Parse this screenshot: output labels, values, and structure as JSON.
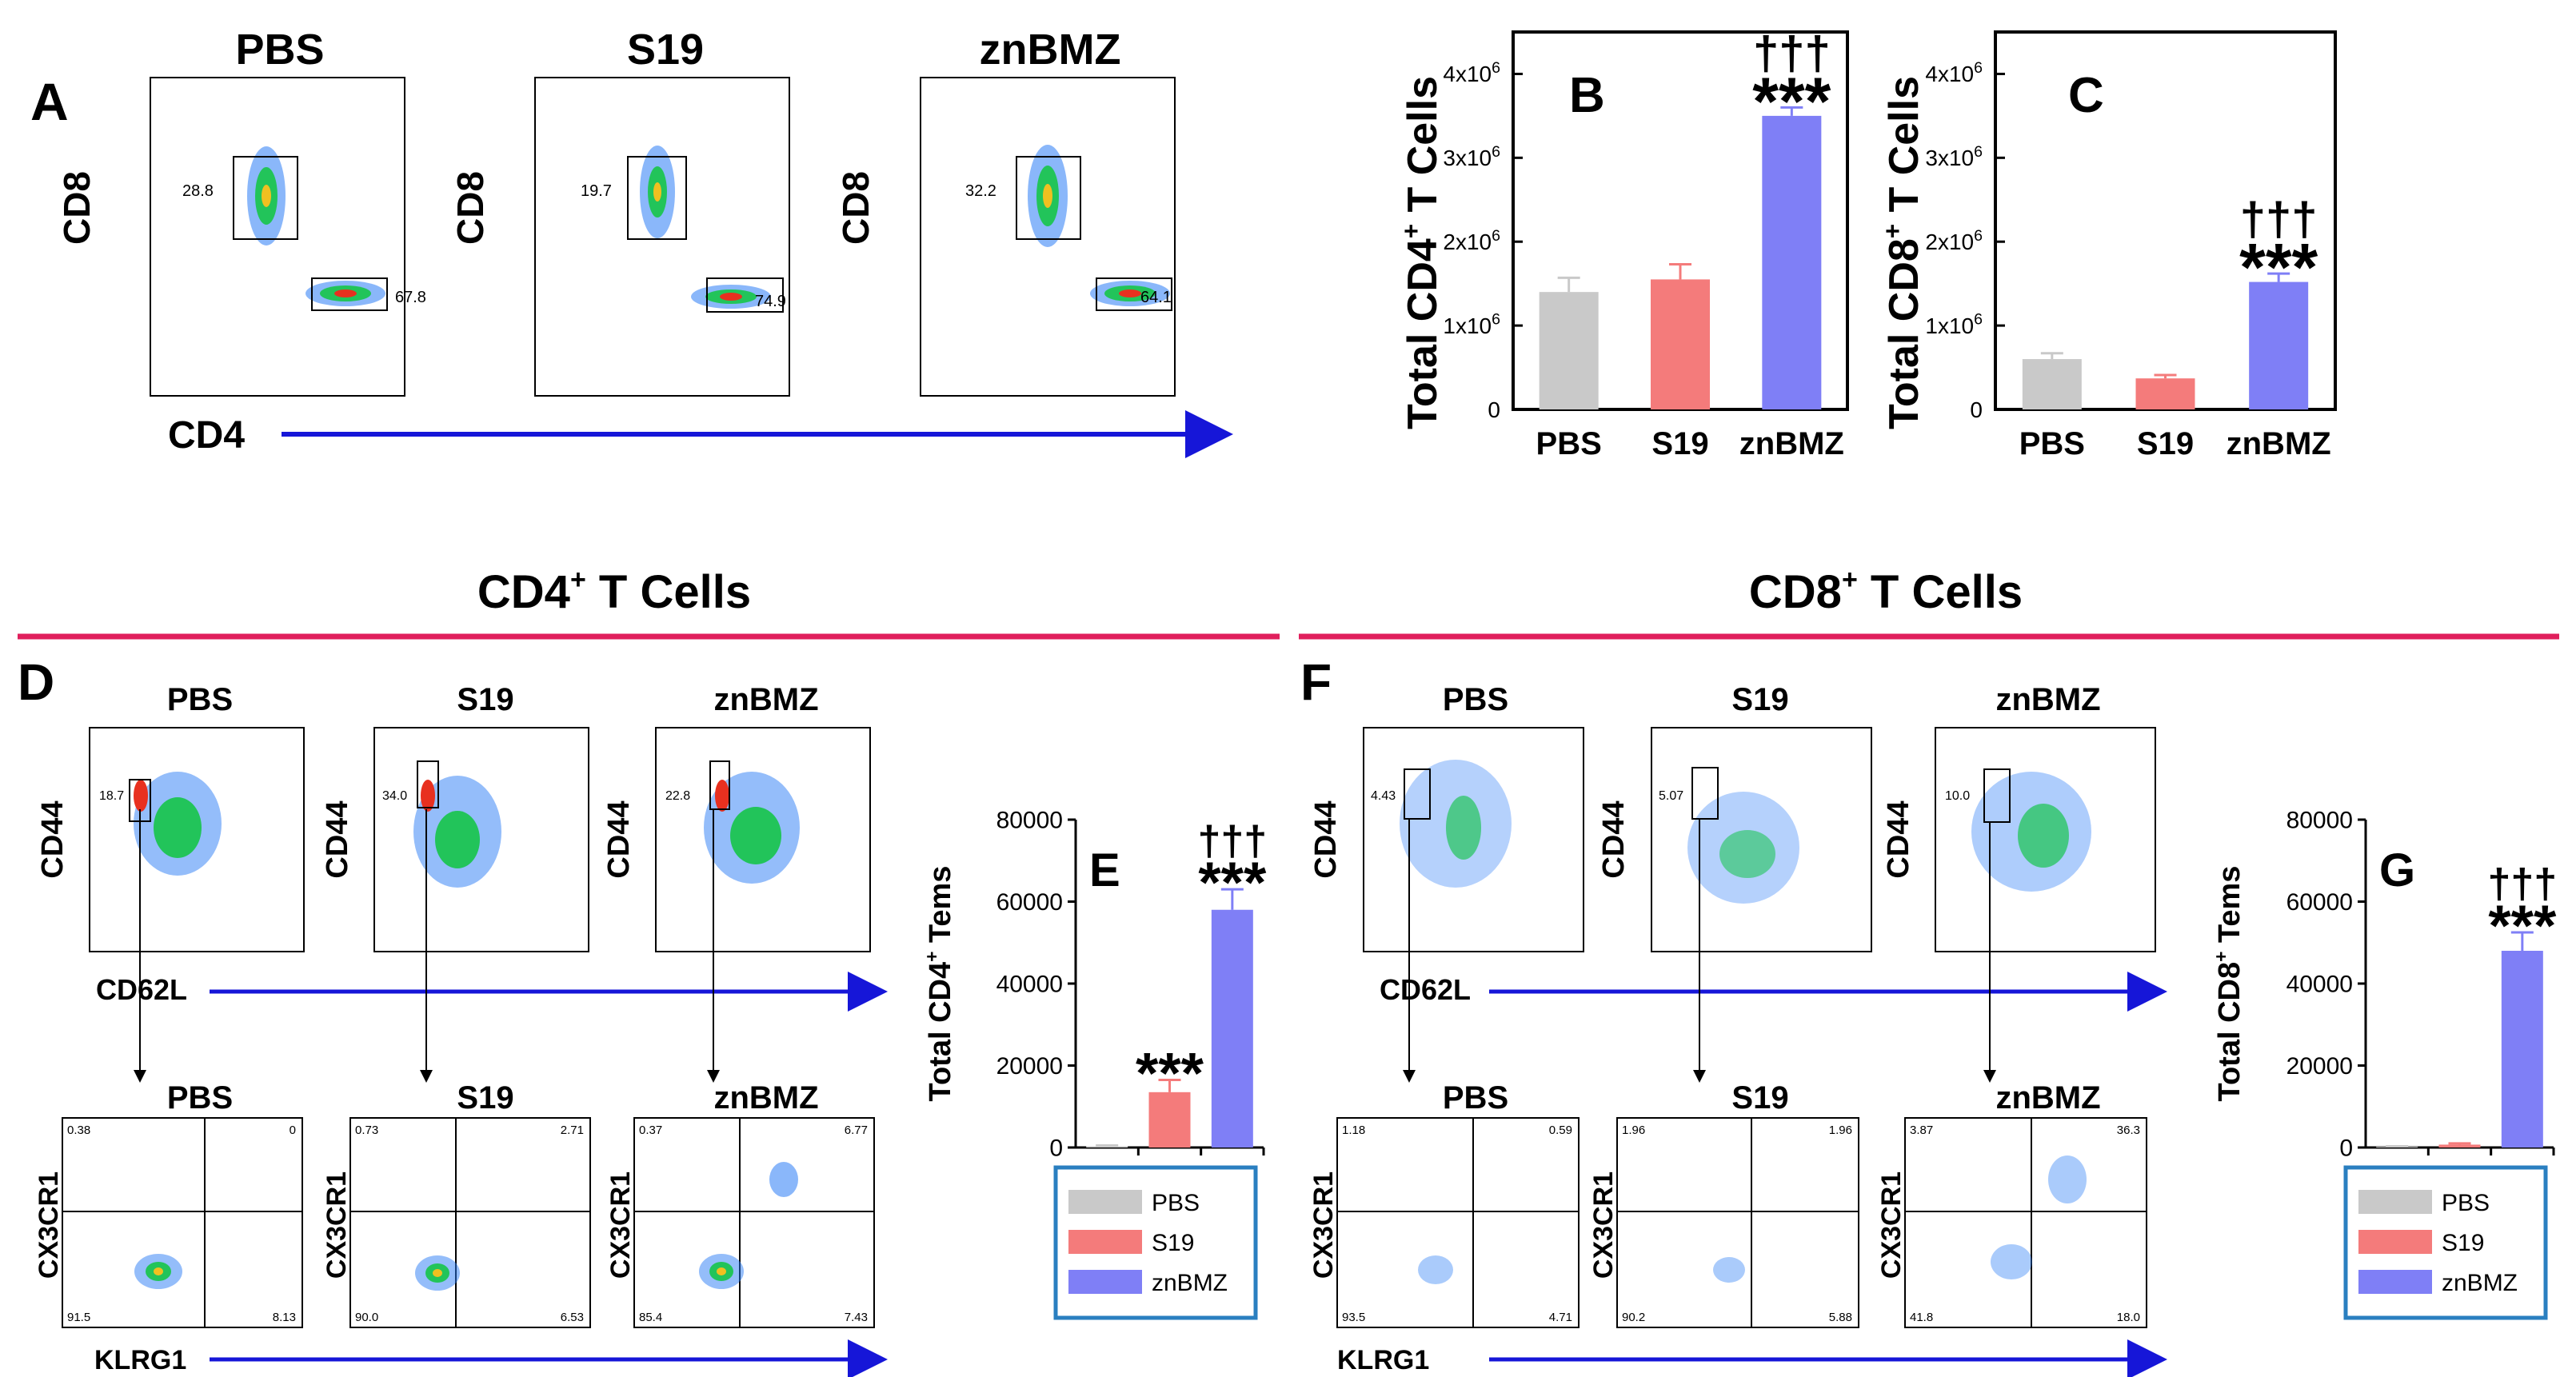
{
  "colors": {
    "pbs": "#c9c9c9",
    "s19": "#f47b7b",
    "znbmz": "#7f7ff6",
    "blue_axis": "#1616d8",
    "divider": "#e01f5c",
    "legend_border": "#2a7fc0"
  },
  "panel_a": {
    "letter": "A",
    "titles": [
      "PBS",
      "S19",
      "znBMZ"
    ],
    "y_label": "CD8",
    "x_label": "CD4",
    "gates": [
      {
        "cd8": "28.8",
        "cd4": "67.8"
      },
      {
        "cd8": "19.7",
        "cd4": "74.9"
      },
      {
        "cd8": "32.2",
        "cd4": "64.1"
      }
    ]
  },
  "panel_d": {
    "letter": "D",
    "header": "CD4",
    "header_sup": "+",
    "header_rest": " T Cells",
    "titles": [
      "PBS",
      "S19",
      "znBMZ"
    ],
    "top_y_label": "CD44",
    "top_x_label": "CD62L",
    "top_gates": [
      "18.7",
      "34.0",
      "22.8"
    ],
    "bottom_y_label": "CX3CR1",
    "bottom_x_label": "KLRG1",
    "quadrants": [
      {
        "tl": "0.38",
        "tr": "0",
        "bl": "91.5",
        "br": "8.13"
      },
      {
        "tl": "0.73",
        "tr": "2.71",
        "bl": "90.0",
        "br": "6.53"
      },
      {
        "tl": "0.37",
        "tr": "6.77",
        "bl": "85.4",
        "br": "7.43"
      }
    ]
  },
  "panel_f": {
    "letter": "F",
    "header": "CD8",
    "header_sup": "+",
    "header_rest": " T Cells",
    "titles": [
      "PBS",
      "S19",
      "znBMZ"
    ],
    "top_y_label": "CD44",
    "top_x_label": "CD62L",
    "top_gates": [
      "4.43",
      "5.07",
      "10.0"
    ],
    "bottom_y_label": "CX3CR1",
    "bottom_x_label": "KLRG1",
    "quadrants": [
      {
        "tl": "1.18",
        "tr": "0.59",
        "bl": "93.5",
        "br": "4.71"
      },
      {
        "tl": "1.96",
        "tr": "1.96",
        "bl": "90.2",
        "br": "5.88"
      },
      {
        "tl": "3.87",
        "tr": "36.3",
        "bl": "41.8",
        "br": "18.0"
      }
    ]
  },
  "legend": {
    "items": [
      "PBS",
      "S19",
      "znBMZ"
    ]
  },
  "chart_data": [
    {
      "id": "B",
      "type": "bar",
      "letter": "B",
      "ylabel": "Total CD4",
      "ylabel_sup": "+",
      "ylabel_rest": " T Cells",
      "categories": [
        "PBS",
        "S19",
        "znBMZ"
      ],
      "values": [
        1400000,
        1550000,
        3500000
      ],
      "errors": [
        170000,
        180000,
        100000
      ],
      "ylim": [
        0,
        4500000
      ],
      "ticks": [
        {
          "v": 0,
          "base": "0",
          "exp": ""
        },
        {
          "v": 1000000,
          "base": "1x10",
          "exp": "6"
        },
        {
          "v": 2000000,
          "base": "2x10",
          "exp": "6"
        },
        {
          "v": 3000000,
          "base": "3x10",
          "exp": "6"
        },
        {
          "v": 4000000,
          "base": "4x10",
          "exp": "6"
        }
      ],
      "annotations": [
        {
          "index": 2,
          "lines": [
            "†††",
            "***"
          ]
        }
      ]
    },
    {
      "id": "C",
      "type": "bar",
      "letter": "C",
      "ylabel": "Total CD8",
      "ylabel_sup": "+",
      "ylabel_rest": " T Cells",
      "categories": [
        "PBS",
        "S19",
        "znBMZ"
      ],
      "values": [
        600000,
        370000,
        1520000
      ],
      "errors": [
        70000,
        40000,
        100000
      ],
      "ylim": [
        0,
        4500000
      ],
      "ticks": [
        {
          "v": 0,
          "base": "0",
          "exp": ""
        },
        {
          "v": 1000000,
          "base": "1x10",
          "exp": "6"
        },
        {
          "v": 2000000,
          "base": "2x10",
          "exp": "6"
        },
        {
          "v": 3000000,
          "base": "3x10",
          "exp": "6"
        },
        {
          "v": 4000000,
          "base": "4x10",
          "exp": "6"
        }
      ],
      "annotations": [
        {
          "index": 2,
          "lines": [
            "†††",
            "***"
          ]
        }
      ]
    },
    {
      "id": "E",
      "type": "bar",
      "letter": "E",
      "ylabel": "Total CD4",
      "ylabel_sup": "+",
      "ylabel_rest": " Tems",
      "categories": [
        "PBS",
        "S19",
        "znBMZ"
      ],
      "values": [
        300,
        13500,
        58000
      ],
      "errors": [
        200,
        3000,
        5000
      ],
      "ylim": [
        0,
        80000
      ],
      "ticks": [
        {
          "v": 0,
          "base": "0",
          "exp": ""
        },
        {
          "v": 20000,
          "base": "20000",
          "exp": ""
        },
        {
          "v": 40000,
          "base": "40000",
          "exp": ""
        },
        {
          "v": 60000,
          "base": "60000",
          "exp": ""
        },
        {
          "v": 80000,
          "base": "80000",
          "exp": ""
        }
      ],
      "annotations": [
        {
          "index": 1,
          "lines": [
            "***"
          ]
        },
        {
          "index": 2,
          "lines": [
            "†††",
            "***"
          ]
        }
      ]
    },
    {
      "id": "G",
      "type": "bar",
      "letter": "G",
      "ylabel": "Total CD8",
      "ylabel_sup": "+",
      "ylabel_rest": " Tems",
      "categories": [
        "PBS",
        "S19",
        "znBMZ"
      ],
      "values": [
        200,
        700,
        48000
      ],
      "errors": [
        100,
        300,
        4500
      ],
      "ylim": [
        0,
        80000
      ],
      "ticks": [
        {
          "v": 0,
          "base": "0",
          "exp": ""
        },
        {
          "v": 20000,
          "base": "20000",
          "exp": ""
        },
        {
          "v": 40000,
          "base": "40000",
          "exp": ""
        },
        {
          "v": 60000,
          "base": "60000",
          "exp": ""
        },
        {
          "v": 80000,
          "base": "80000",
          "exp": ""
        }
      ],
      "annotations": [
        {
          "index": 2,
          "lines": [
            "†††",
            "***"
          ]
        }
      ]
    }
  ]
}
